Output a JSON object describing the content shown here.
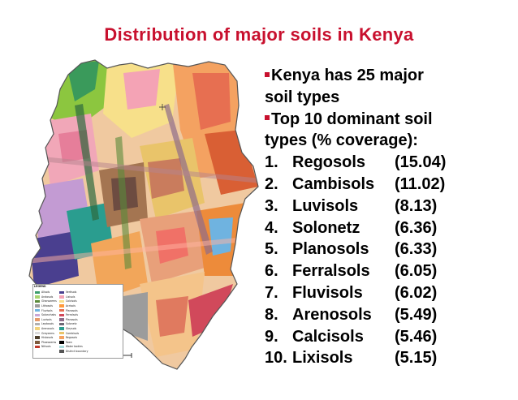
{
  "title": "Distribution of major soils in Kenya",
  "bullets": [
    {
      "lines": [
        "Kenya has 25 major",
        "soil types"
      ]
    },
    {
      "lines": [
        "Top 10 dominant soil",
        "types (% coverage):"
      ]
    }
  ],
  "soils": [
    {
      "n": "1.",
      "name": "Regosols",
      "pct": "(15.04)"
    },
    {
      "n": "2.",
      "name": "Cambisols",
      "pct": "(11.02)"
    },
    {
      "n": "3.",
      "name": "Luvisols",
      "pct": "(8.13)"
    },
    {
      "n": "4.",
      "name": "Solonetz",
      "pct": "(6.36)"
    },
    {
      "n": "5.",
      "name": "Planosols",
      "pct": "(6.33)"
    },
    {
      "n": "6.",
      "name": "Ferralsols",
      "pct": "(6.05)"
    },
    {
      "n": "7.",
      "name": "Fluvisols",
      "pct": "(6.02)"
    },
    {
      "n": "8.",
      "name": "Arenosols",
      "pct": "(5.49)"
    },
    {
      "n": "9.",
      "name": "Calcisols",
      "pct": "(5.46)"
    },
    {
      "n": "10.",
      "name": "Lixisols",
      "pct": "(5.15)"
    }
  ],
  "legend": {
    "title": "LEGEND",
    "col1": [
      {
        "label": "Alisols",
        "color": "#3b9c6b"
      },
      {
        "label": "Andosols",
        "color": "#a8d46f"
      },
      {
        "label": "Ghanozems",
        "color": "#5a8a3a"
      },
      {
        "label": "Lithosols",
        "color": "#9c9c9c"
      },
      {
        "label": "Fluvisols",
        "color": "#6fb3e0"
      },
      {
        "label": "Solonchaks",
        "color": "#c9a6d6"
      },
      {
        "label": "Luvisols",
        "color": "#e69a6b"
      },
      {
        "label": "Leptosols",
        "color": "#b0b0b0"
      },
      {
        "label": "Arenosols",
        "color": "#f2d27a"
      },
      {
        "label": "Greyzems",
        "color": "#d9d9d9"
      },
      {
        "label": "Histosols",
        "color": "#4b3d2a"
      },
      {
        "label": "Phaeozems",
        "color": "#7d5a3c"
      },
      {
        "label": "Nitisols",
        "color": "#c0392b"
      }
    ],
    "col2": [
      {
        "label": "Vertisols",
        "color": "#4a3f8f"
      },
      {
        "label": "Lixisols",
        "color": "#f4a3b5"
      },
      {
        "label": "Calcisols",
        "color": "#f7e08a"
      },
      {
        "label": "Acrisols",
        "color": "#ff9a3c"
      },
      {
        "label": "Planosols",
        "color": "#e76f51"
      },
      {
        "label": "Ferralsols",
        "color": "#d1495b"
      },
      {
        "label": "Planosols",
        "color": "#8e6c8a"
      },
      {
        "label": "Solonetz",
        "color": "#6d6875"
      },
      {
        "label": "Gleysols",
        "color": "#2a9d8f"
      },
      {
        "label": "Cambisols",
        "color": "#e9c46a"
      },
      {
        "label": "Regosols",
        "color": "#f4a261"
      },
      {
        "label": "Town",
        "color": "#000000"
      },
      {
        "label": "Water bodies",
        "color": "#a8dadc"
      },
      {
        "label": "District boundary",
        "color": "#555555"
      }
    ]
  }
}
